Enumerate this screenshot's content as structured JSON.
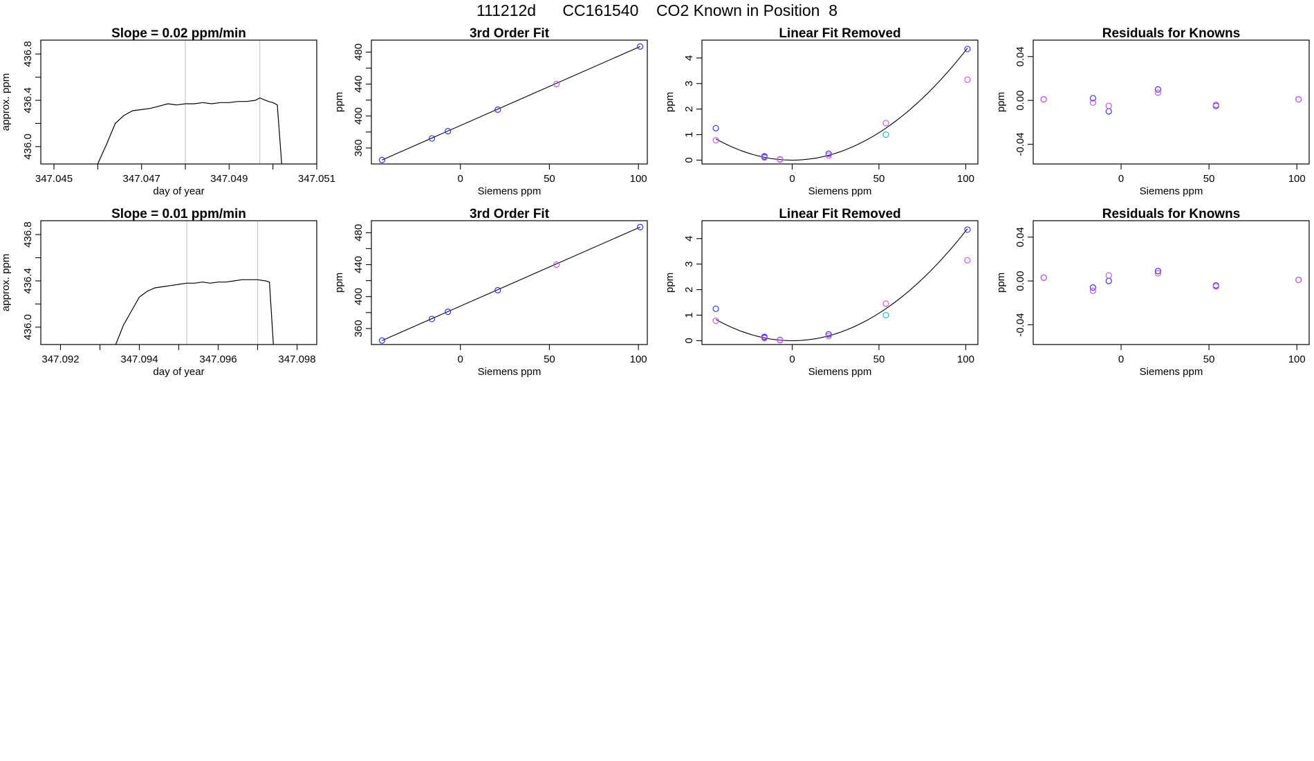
{
  "page": {
    "title": "111212d      CC161540    CO2 Known in Position  8"
  },
  "chart_data": [
    {
      "id": "trace-1",
      "type": "line",
      "title": "Slope =  0.02  ppm/min",
      "xlabel": "day of year",
      "ylabel": "approx. ppm",
      "xlim": [
        347.0447,
        347.051
      ],
      "ylim": [
        435.85,
        436.92
      ],
      "xticks": [
        347.045,
        347.046,
        347.047,
        347.048,
        347.049,
        347.05,
        347.051
      ],
      "xtick_labels": [
        "347.045",
        "",
        "347.047",
        "",
        "347.049",
        "",
        "347.051"
      ],
      "yticks": [
        436.0,
        436.2,
        436.4,
        436.6,
        436.8
      ],
      "ytick_labels": [
        "436.0",
        "",
        "436.4",
        "",
        "436.8"
      ],
      "vlines": [
        347.048,
        347.0497
      ],
      "series": [
        {
          "name": "trace",
          "x": [
            347.046,
            347.0462,
            347.0464,
            347.0466,
            347.0468,
            347.047,
            347.0472,
            347.0474,
            347.0476,
            347.0478,
            347.048,
            347.0482,
            347.0484,
            347.0486,
            347.0488,
            347.049,
            347.0492,
            347.0494,
            347.0496,
            347.0497,
            347.0499,
            347.05,
            347.0501,
            347.0502
          ],
          "y": [
            435.85,
            436.02,
            436.2,
            436.27,
            436.31,
            436.32,
            436.33,
            436.35,
            436.37,
            436.36,
            436.37,
            436.37,
            436.38,
            436.37,
            436.38,
            436.38,
            436.39,
            436.39,
            436.4,
            436.42,
            436.39,
            436.38,
            436.36,
            435.85
          ]
        }
      ]
    },
    {
      "id": "fit-1",
      "type": "scatter",
      "title": "3rd Order Fit",
      "xlabel": "Siemens ppm",
      "ylabel": "ppm",
      "xlim": [
        -50,
        105
      ],
      "ylim": [
        340,
        495
      ],
      "xticks": [
        0,
        50,
        100
      ],
      "xtick_labels": [
        "0",
        "50",
        "100"
      ],
      "yticks": [
        360,
        380,
        400,
        420,
        440,
        460,
        480
      ],
      "ytick_labels": [
        "360",
        "",
        "400",
        "",
        "440",
        "",
        "480"
      ],
      "fit_line": {
        "x": [
          -44,
          101
        ],
        "y": [
          345,
          487
        ]
      },
      "series": [
        {
          "name": "knowns",
          "color": "#3333ff",
          "x": [
            -44,
            -16,
            -7,
            21,
            101
          ],
          "y": [
            345,
            372,
            381,
            408,
            487
          ]
        },
        {
          "name": "position-8",
          "color": "#cc55ee",
          "x": [
            54
          ],
          "y": [
            440
          ]
        }
      ]
    },
    {
      "id": "linear-1",
      "type": "scatter",
      "title": "Linear Fit Removed",
      "xlabel": "Siemens ppm",
      "ylabel": "ppm",
      "xlim": [
        -52,
        107
      ],
      "ylim": [
        -0.15,
        4.7
      ],
      "xticks": [
        0,
        50,
        100
      ],
      "xtick_labels": [
        "0",
        "50",
        "100"
      ],
      "yticks": [
        0,
        1,
        2,
        3,
        4
      ],
      "ytick_labels": [
        "0",
        "1",
        "2",
        "3",
        "4"
      ],
      "curve": {
        "coeffs": [
          0.0,
          0.0,
          0.00043
        ],
        "xrange": [
          -44,
          101
        ]
      },
      "series": [
        {
          "name": "knowns",
          "color": "#3333ff",
          "x": [
            -44,
            -16,
            -16,
            -7,
            21,
            101
          ],
          "y": [
            1.25,
            0.15,
            0.12,
            0.03,
            0.25,
            4.35
          ]
        },
        {
          "name": "alternate",
          "color": "#cc55ee",
          "x": [
            -44,
            -16,
            -7,
            21,
            54,
            101
          ],
          "y": [
            0.78,
            0.1,
            0.02,
            0.18,
            1.45,
            3.15
          ]
        },
        {
          "name": "position-8",
          "color": "#22bbcc",
          "x": [
            54
          ],
          "y": [
            1.0
          ]
        }
      ]
    },
    {
      "id": "resid-1",
      "type": "scatter",
      "title": "Residuals for Knowns",
      "xlabel": "Siemens ppm",
      "ylabel": "ppm",
      "xlim": [
        -50,
        107
      ],
      "ylim": [
        -0.058,
        0.055
      ],
      "xticks": [
        0,
        50,
        100
      ],
      "xtick_labels": [
        "0",
        "50",
        "100"
      ],
      "yticks": [
        -0.04,
        0.0,
        0.04
      ],
      "ytick_labels": [
        "-0.04",
        "0.00",
        "0.04"
      ],
      "series": [
        {
          "name": "knowns",
          "color": "#3333ff",
          "x": [
            -44,
            -16,
            -7,
            21,
            54,
            101
          ],
          "y": [
            0.001,
            0.002,
            -0.01,
            0.01,
            -0.005,
            0.001
          ]
        },
        {
          "name": "alternate",
          "color": "#cc55ee",
          "x": [
            -44,
            -16,
            -7,
            21,
            54,
            101
          ],
          "y": [
            0.001,
            -0.002,
            -0.005,
            0.007,
            -0.004,
            0.001
          ]
        }
      ]
    },
    {
      "id": "trace-2",
      "type": "line",
      "title": "Slope =  0.01  ppm/min",
      "xlabel": "day of year",
      "ylabel": "approx. ppm",
      "xlim": [
        347.0915,
        347.0985
      ],
      "ylim": [
        435.85,
        436.92
      ],
      "xticks": [
        347.092,
        347.093,
        347.094,
        347.095,
        347.096,
        347.097,
        347.098
      ],
      "xtick_labels": [
        "347.092",
        "",
        "347.094",
        "",
        "347.096",
        "",
        "347.098"
      ],
      "yticks": [
        436.0,
        436.2,
        436.4,
        436.6,
        436.8
      ],
      "ytick_labels": [
        "436.0",
        "",
        "436.4",
        "",
        "436.8"
      ],
      "vlines": [
        347.0952,
        347.097
      ],
      "series": [
        {
          "name": "trace",
          "x": [
            347.0934,
            347.0936,
            347.0938,
            347.094,
            347.0942,
            347.0944,
            347.0946,
            347.0948,
            347.095,
            347.0952,
            347.0954,
            347.0956,
            347.0958,
            347.096,
            347.0962,
            347.0964,
            347.0966,
            347.0968,
            347.097,
            347.0972,
            347.0973,
            347.0974
          ],
          "y": [
            435.85,
            436.02,
            436.14,
            436.26,
            436.31,
            436.34,
            436.35,
            436.36,
            436.37,
            436.38,
            436.38,
            436.39,
            436.38,
            436.39,
            436.39,
            436.4,
            436.41,
            436.41,
            436.41,
            436.4,
            436.39,
            435.85
          ]
        }
      ]
    },
    {
      "id": "fit-2",
      "type": "scatter",
      "title": "3rd Order Fit",
      "xlabel": "Siemens ppm",
      "ylabel": "ppm",
      "xlim": [
        -50,
        105
      ],
      "ylim": [
        340,
        495
      ],
      "xticks": [
        0,
        50,
        100
      ],
      "xtick_labels": [
        "0",
        "50",
        "100"
      ],
      "yticks": [
        360,
        380,
        400,
        420,
        440,
        460,
        480
      ],
      "ytick_labels": [
        "360",
        "",
        "400",
        "",
        "440",
        "",
        "480"
      ],
      "fit_line": {
        "x": [
          -44,
          101
        ],
        "y": [
          345,
          487
        ]
      },
      "series": [
        {
          "name": "knowns",
          "color": "#3333ff",
          "x": [
            -44,
            -16,
            -7,
            21,
            101
          ],
          "y": [
            345,
            372,
            381,
            408,
            487
          ]
        },
        {
          "name": "position-8",
          "color": "#cc55ee",
          "x": [
            54
          ],
          "y": [
            440
          ]
        }
      ]
    },
    {
      "id": "linear-2",
      "type": "scatter",
      "title": "Linear Fit Removed",
      "xlabel": "Siemens ppm",
      "ylabel": "ppm",
      "xlim": [
        -52,
        107
      ],
      "ylim": [
        -0.15,
        4.7
      ],
      "xticks": [
        0,
        50,
        100
      ],
      "xtick_labels": [
        "0",
        "50",
        "100"
      ],
      "yticks": [
        0,
        1,
        2,
        3,
        4
      ],
      "ytick_labels": [
        "0",
        "1",
        "2",
        "3",
        "4"
      ],
      "curve": {
        "coeffs": [
          0.0,
          0.0,
          0.00043
        ],
        "xrange": [
          -44,
          101
        ]
      },
      "series": [
        {
          "name": "knowns",
          "color": "#3333ff",
          "x": [
            -44,
            -16,
            -16,
            -7,
            21,
            101
          ],
          "y": [
            1.25,
            0.15,
            0.12,
            0.03,
            0.25,
            4.35
          ]
        },
        {
          "name": "alternate",
          "color": "#cc55ee",
          "x": [
            -44,
            -16,
            -7,
            21,
            54,
            101
          ],
          "y": [
            0.78,
            0.1,
            0.02,
            0.18,
            1.45,
            3.15
          ]
        },
        {
          "name": "position-8",
          "color": "#22bbcc",
          "x": [
            54
          ],
          "y": [
            1.0
          ]
        }
      ]
    },
    {
      "id": "resid-2",
      "type": "scatter",
      "title": "Residuals for Knowns",
      "xlabel": "Siemens ppm",
      "ylabel": "ppm",
      "xlim": [
        -50,
        107
      ],
      "ylim": [
        -0.058,
        0.055
      ],
      "xticks": [
        0,
        50,
        100
      ],
      "xtick_labels": [
        "0",
        "50",
        "100"
      ],
      "yticks": [
        -0.04,
        0.0,
        0.04
      ],
      "ytick_labels": [
        "-0.04",
        "0.00",
        "0.04"
      ],
      "series": [
        {
          "name": "knowns",
          "color": "#3333ff",
          "x": [
            -44,
            -16,
            -7,
            21,
            54,
            101
          ],
          "y": [
            0.003,
            -0.006,
            0.0,
            0.009,
            -0.004,
            0.001
          ]
        },
        {
          "name": "alternate",
          "color": "#cc55ee",
          "x": [
            -44,
            -16,
            -7,
            21,
            54,
            101
          ],
          "y": [
            0.003,
            -0.009,
            0.005,
            0.007,
            -0.005,
            0.001
          ]
        }
      ]
    }
  ]
}
